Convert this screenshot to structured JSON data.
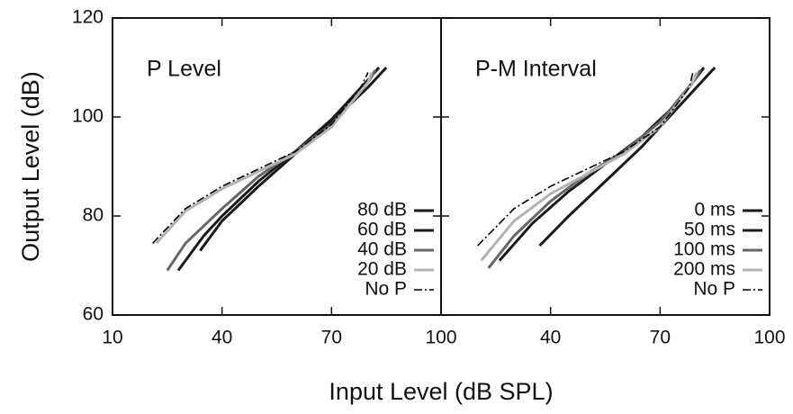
{
  "axis_labels": {
    "x": "Input Level (dB SPL)",
    "y": "Output Level (dB)"
  },
  "chart_data": [
    {
      "type": "line",
      "title": "P Level",
      "xlim": [
        10,
        100
      ],
      "xticks": [
        10,
        40,
        70,
        100
      ],
      "ylim": [
        60,
        120
      ],
      "yticks": [
        60,
        80,
        100,
        120
      ],
      "legend": "lower right",
      "series": [
        {
          "name": "80 dB",
          "color": "#1a1a1a",
          "linestyle": "solid",
          "x": [
            34,
            40,
            50,
            60,
            70,
            80,
            85
          ],
          "values": [
            73,
            79,
            86,
            92.5,
            99,
            106,
            110
          ]
        },
        {
          "name": "60 dB",
          "color": "#1a1a1a",
          "linestyle": "solid",
          "x": [
            28,
            35,
            40,
            50,
            60,
            70,
            80,
            83
          ],
          "values": [
            69,
            76,
            80,
            87,
            93,
            99.5,
            107.5,
            110
          ]
        },
        {
          "name": "40 dB",
          "color": "#666666",
          "linestyle": "solid",
          "x": [
            25,
            30,
            40,
            50,
            60,
            70,
            80,
            82
          ],
          "values": [
            69,
            74.5,
            81.5,
            88,
            93,
            98.5,
            107,
            109.5
          ]
        },
        {
          "name": "20 dB",
          "color": "#b3b3b3",
          "linestyle": "solid",
          "x": [
            22,
            30,
            40,
            50,
            60,
            70,
            80,
            81
          ],
          "values": [
            74.5,
            81,
            85.5,
            89,
            92.5,
            98,
            107,
            109
          ]
        },
        {
          "name": "No P",
          "color": "#000000",
          "linestyle": "dashdot",
          "x": [
            21,
            30,
            40,
            50,
            60,
            70,
            78,
            80
          ],
          "values": [
            74.5,
            81.5,
            86,
            89.5,
            93,
            98.5,
            106,
            109
          ]
        }
      ]
    },
    {
      "type": "line",
      "title": "P-M Interval",
      "xlim": [
        10,
        100
      ],
      "xticks": [
        40,
        70,
        100
      ],
      "ylim": [
        60,
        120
      ],
      "yticks": [
        60,
        80,
        100,
        120
      ],
      "legend": "lower right",
      "series": [
        {
          "name": "0 ms",
          "color": "#1a1a1a",
          "linestyle": "solid",
          "x": [
            37,
            45,
            55,
            65,
            75,
            85
          ],
          "values": [
            74,
            80,
            87,
            94,
            102,
            110
          ]
        },
        {
          "name": "50 ms",
          "color": "#1a1a1a",
          "linestyle": "solid",
          "x": [
            26,
            35,
            45,
            55,
            65,
            75,
            82
          ],
          "values": [
            71,
            78.5,
            85,
            90.5,
            96,
            103,
            110
          ]
        },
        {
          "name": "100 ms",
          "color": "#666666",
          "linestyle": "solid",
          "x": [
            23,
            30,
            40,
            50,
            60,
            70,
            80,
            81
          ],
          "values": [
            69.5,
            76,
            83,
            88.5,
            93,
            99,
            108,
            109.5
          ]
        },
        {
          "name": "200 ms",
          "color": "#b3b3b3",
          "linestyle": "solid",
          "x": [
            21,
            30,
            40,
            50,
            60,
            70,
            79,
            80
          ],
          "values": [
            71,
            79,
            84.5,
            88.5,
            92.5,
            98,
            107,
            109
          ]
        },
        {
          "name": "No P",
          "color": "#000000",
          "linestyle": "dashdot",
          "x": [
            20,
            30,
            40,
            50,
            60,
            70,
            78,
            79
          ],
          "values": [
            74,
            81.5,
            86,
            89.5,
            93,
            98,
            106,
            109
          ]
        }
      ]
    }
  ]
}
